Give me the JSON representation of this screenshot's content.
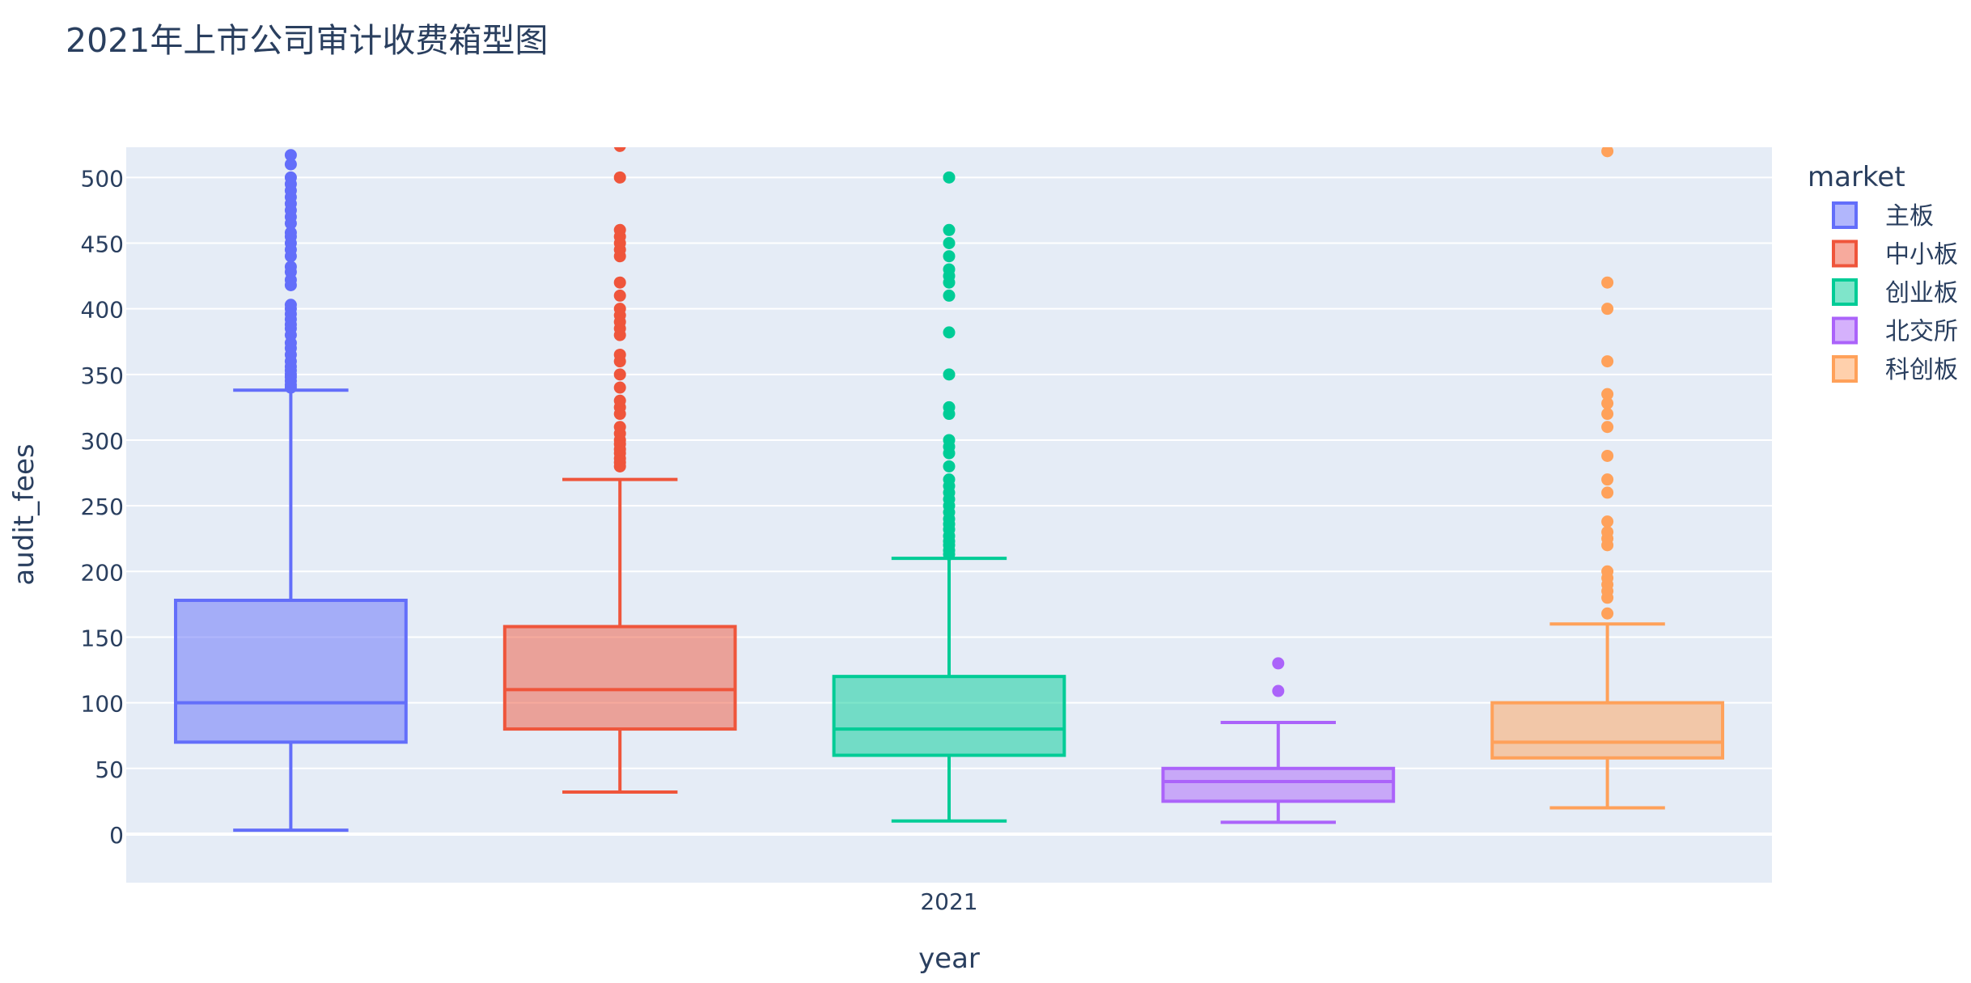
{
  "chart_data": {
    "type": "box",
    "title": "2021年上市公司审计收费箱型图",
    "xlabel": "year",
    "ylabel": "audit_fees",
    "x_categories": [
      "2021"
    ],
    "ylim": [
      -37,
      523
    ],
    "yticks": [
      0,
      50,
      100,
      150,
      200,
      250,
      300,
      350,
      400,
      450,
      500
    ],
    "grid": true,
    "legend_title": "market",
    "legend_position": "right",
    "series": [
      {
        "name": "主板",
        "color": "#636efa",
        "fill": "rgba(99,110,250,0.5)",
        "lowerfence": 3,
        "q1": 70,
        "median": 100,
        "q3": 178,
        "upperfence": 338,
        "outliers": [
          340,
          342,
          345,
          348,
          350,
          353,
          356,
          360,
          365,
          370,
          374,
          380,
          385,
          388,
          392,
          396,
          400,
          403,
          418,
          422,
          428,
          432,
          440,
          445,
          450,
          455,
          458,
          465,
          470,
          475,
          480,
          485,
          490,
          495,
          500,
          510,
          517
        ]
      },
      {
        "name": "中小板",
        "color": "#ef553b",
        "fill": "rgba(239,85,59,0.5)",
        "lowerfence": 32,
        "q1": 80,
        "median": 110,
        "q3": 158,
        "upperfence": 270,
        "outliers": [
          280,
          283,
          286,
          290,
          293,
          297,
          300,
          305,
          310,
          320,
          325,
          330,
          340,
          350,
          360,
          365,
          380,
          385,
          390,
          395,
          400,
          410,
          420,
          440,
          445,
          450,
          455,
          460,
          500,
          524
        ]
      },
      {
        "name": "创业板",
        "color": "#00cc96",
        "fill": "rgba(0,204,150,0.5)",
        "lowerfence": 10,
        "q1": 60,
        "median": 80,
        "q3": 120,
        "upperfence": 210,
        "outliers": [
          213,
          216,
          220,
          223,
          227,
          232,
          236,
          240,
          245,
          250,
          255,
          260,
          265,
          270,
          280,
          290,
          295,
          300,
          320,
          325,
          350,
          382,
          410,
          420,
          425,
          430,
          440,
          450,
          460,
          500
        ]
      },
      {
        "name": "北交所",
        "color": "#ab63fa",
        "fill": "rgba(171,99,250,0.5)",
        "lowerfence": 9,
        "q1": 25,
        "median": 40,
        "q3": 50,
        "upperfence": 85,
        "outliers": [
          109,
          130
        ]
      },
      {
        "name": "科创板",
        "color": "#ffa15a",
        "fill": "rgba(255,161,90,0.5)",
        "lowerfence": 20,
        "q1": 58,
        "median": 70,
        "q3": 100,
        "upperfence": 160,
        "outliers": [
          168,
          180,
          185,
          190,
          195,
          200,
          220,
          225,
          230,
          238,
          260,
          270,
          288,
          310,
          320,
          328,
          335,
          360,
          400,
          420,
          520
        ]
      }
    ]
  }
}
